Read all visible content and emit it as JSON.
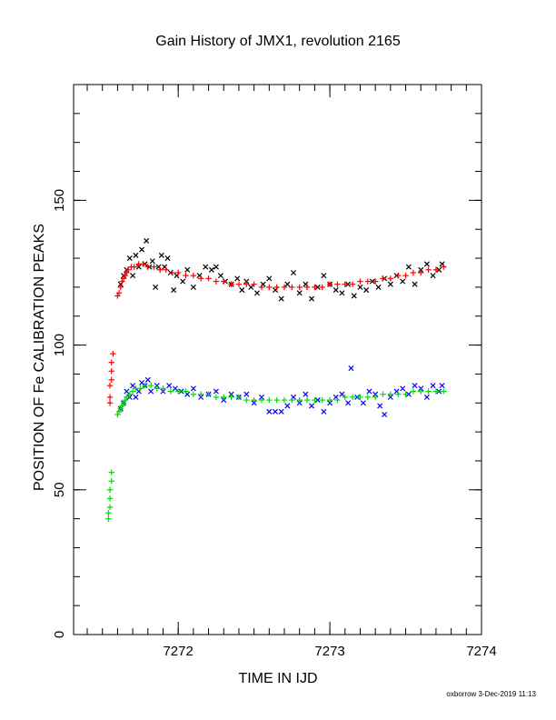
{
  "chart_data": {
    "type": "scatter",
    "title": "Gain History of JMX1, revolution 2165",
    "xlabel": "TIME IN IJD",
    "ylabel": "POSITION OF Fe CALIBRATION PEAKS",
    "xlim": [
      7271.31,
      7274.0
    ],
    "ylim": [
      0,
      190
    ],
    "x_ticks": [
      7272,
      7273,
      7274
    ],
    "y_ticks": [
      0,
      50,
      100,
      150
    ],
    "grid": false,
    "legend": "none",
    "series": [
      {
        "color": "#000000",
        "marker": "x",
        "points": [
          [
            7271.62,
            121
          ],
          [
            7271.64,
            124
          ],
          [
            7271.66,
            126
          ],
          [
            7271.68,
            130
          ],
          [
            7271.7,
            124
          ],
          [
            7271.72,
            131
          ],
          [
            7271.74,
            127
          ],
          [
            7271.76,
            133
          ],
          [
            7271.78,
            128
          ],
          [
            7271.79,
            136
          ],
          [
            7271.81,
            127
          ],
          [
            7271.83,
            129
          ],
          [
            7271.85,
            120
          ],
          [
            7271.87,
            127
          ],
          [
            7271.89,
            131
          ],
          [
            7271.91,
            127
          ],
          [
            7271.93,
            130
          ],
          [
            7271.95,
            125
          ],
          [
            7271.97,
            119
          ],
          [
            7271.99,
            124
          ],
          [
            7272.03,
            122
          ],
          [
            7272.06,
            126
          ],
          [
            7272.1,
            120
          ],
          [
            7272.14,
            124
          ],
          [
            7272.18,
            127
          ],
          [
            7272.22,
            126
          ],
          [
            7272.25,
            127
          ],
          [
            7272.28,
            124
          ],
          [
            7272.31,
            122
          ],
          [
            7272.35,
            121
          ],
          [
            7272.39,
            123
          ],
          [
            7272.42,
            119
          ],
          [
            7272.45,
            122
          ],
          [
            7272.48,
            120
          ],
          [
            7272.52,
            118
          ],
          [
            7272.56,
            121
          ],
          [
            7272.6,
            123
          ],
          [
            7272.64,
            119
          ],
          [
            7272.68,
            116
          ],
          [
            7272.72,
            121
          ],
          [
            7272.76,
            125
          ],
          [
            7272.8,
            118
          ],
          [
            7272.84,
            121
          ],
          [
            7272.88,
            116
          ],
          [
            7272.92,
            120
          ],
          [
            7272.96,
            124
          ],
          [
            7273.0,
            121
          ],
          [
            7273.04,
            119
          ],
          [
            7273.08,
            118
          ],
          [
            7273.12,
            121
          ],
          [
            7273.16,
            117
          ],
          [
            7273.2,
            120
          ],
          [
            7273.24,
            119
          ],
          [
            7273.28,
            122
          ],
          [
            7273.32,
            120
          ],
          [
            7273.36,
            123
          ],
          [
            7273.4,
            121
          ],
          [
            7273.44,
            124
          ],
          [
            7273.48,
            122
          ],
          [
            7273.52,
            127
          ],
          [
            7273.56,
            121
          ],
          [
            7273.6,
            126
          ],
          [
            7273.64,
            128
          ],
          [
            7273.68,
            124
          ],
          [
            7273.72,
            126
          ],
          [
            7273.74,
            128
          ]
        ]
      },
      {
        "color": "#ff0000",
        "marker": "+",
        "points": [
          [
            7271.55,
            80
          ],
          [
            7271.55,
            82
          ],
          [
            7271.55,
            86
          ],
          [
            7271.56,
            88
          ],
          [
            7271.56,
            91
          ],
          [
            7271.56,
            94
          ],
          [
            7271.57,
            97
          ],
          [
            7271.6,
            117
          ],
          [
            7271.61,
            118
          ],
          [
            7271.62,
            120
          ],
          [
            7271.63,
            122
          ],
          [
            7271.64,
            123
          ],
          [
            7271.65,
            124
          ],
          [
            7271.66,
            125
          ],
          [
            7271.67,
            126
          ],
          [
            7271.69,
            127
          ],
          [
            7271.71,
            127
          ],
          [
            7271.74,
            128
          ],
          [
            7271.77,
            128
          ],
          [
            7271.8,
            127
          ],
          [
            7271.84,
            127
          ],
          [
            7271.88,
            126
          ],
          [
            7271.92,
            126
          ],
          [
            7271.96,
            125
          ],
          [
            7272.0,
            125
          ],
          [
            7272.05,
            124
          ],
          [
            7272.1,
            124
          ],
          [
            7272.15,
            123
          ],
          [
            7272.2,
            123
          ],
          [
            7272.25,
            122
          ],
          [
            7272.3,
            122
          ],
          [
            7272.35,
            121
          ],
          [
            7272.4,
            121
          ],
          [
            7272.45,
            121
          ],
          [
            7272.5,
            121
          ],
          [
            7272.55,
            120
          ],
          [
            7272.6,
            120
          ],
          [
            7272.65,
            120
          ],
          [
            7272.7,
            120
          ],
          [
            7272.75,
            120
          ],
          [
            7272.8,
            120
          ],
          [
            7272.85,
            120
          ],
          [
            7272.9,
            120
          ],
          [
            7272.95,
            120
          ],
          [
            7273.0,
            121
          ],
          [
            7273.05,
            121
          ],
          [
            7273.1,
            121
          ],
          [
            7273.15,
            121
          ],
          [
            7273.2,
            122
          ],
          [
            7273.25,
            122
          ],
          [
            7273.3,
            122
          ],
          [
            7273.35,
            123
          ],
          [
            7273.4,
            123
          ],
          [
            7273.45,
            124
          ],
          [
            7273.5,
            124
          ],
          [
            7273.55,
            125
          ],
          [
            7273.6,
            125
          ],
          [
            7273.65,
            126
          ],
          [
            7273.7,
            126
          ],
          [
            7273.75,
            127
          ]
        ]
      },
      {
        "color": "#0000ff",
        "marker": "x",
        "points": [
          [
            7271.62,
            78
          ],
          [
            7271.64,
            80
          ],
          [
            7271.66,
            84
          ],
          [
            7271.68,
            82
          ],
          [
            7271.7,
            86
          ],
          [
            7271.72,
            82
          ],
          [
            7271.74,
            84
          ],
          [
            7271.76,
            87
          ],
          [
            7271.78,
            86
          ],
          [
            7271.8,
            88
          ],
          [
            7271.82,
            84
          ],
          [
            7271.86,
            86
          ],
          [
            7271.9,
            84
          ],
          [
            7271.94,
            86
          ],
          [
            7271.98,
            85
          ],
          [
            7272.02,
            84
          ],
          [
            7272.06,
            83
          ],
          [
            7272.1,
            85
          ],
          [
            7272.15,
            82
          ],
          [
            7272.2,
            83
          ],
          [
            7272.25,
            84
          ],
          [
            7272.3,
            81
          ],
          [
            7272.35,
            83
          ],
          [
            7272.4,
            82
          ],
          [
            7272.45,
            83
          ],
          [
            7272.5,
            80
          ],
          [
            7272.55,
            82
          ],
          [
            7272.6,
            77
          ],
          [
            7272.64,
            77
          ],
          [
            7272.68,
            77
          ],
          [
            7272.72,
            79
          ],
          [
            7272.76,
            82
          ],
          [
            7272.8,
            80
          ],
          [
            7272.84,
            83
          ],
          [
            7272.88,
            79
          ],
          [
            7272.92,
            81
          ],
          [
            7272.96,
            77
          ],
          [
            7273.0,
            80
          ],
          [
            7273.04,
            82
          ],
          [
            7273.08,
            83
          ],
          [
            7273.12,
            80
          ],
          [
            7273.14,
            92
          ],
          [
            7273.18,
            82
          ],
          [
            7273.22,
            80
          ],
          [
            7273.26,
            84
          ],
          [
            7273.3,
            83
          ],
          [
            7273.33,
            79
          ],
          [
            7273.36,
            76
          ],
          [
            7273.4,
            82
          ],
          [
            7273.44,
            84
          ],
          [
            7273.48,
            85
          ],
          [
            7273.52,
            83
          ],
          [
            7273.56,
            86
          ],
          [
            7273.6,
            85
          ],
          [
            7273.64,
            82
          ],
          [
            7273.68,
            86
          ],
          [
            7273.72,
            84
          ],
          [
            7273.74,
            86
          ]
        ]
      },
      {
        "color": "#00dd00",
        "marker": "+",
        "points": [
          [
            7271.54,
            40
          ],
          [
            7271.54,
            42
          ],
          [
            7271.55,
            44
          ],
          [
            7271.55,
            47
          ],
          [
            7271.55,
            50
          ],
          [
            7271.56,
            53
          ],
          [
            7271.56,
            56
          ],
          [
            7271.6,
            76
          ],
          [
            7271.61,
            77
          ],
          [
            7271.62,
            78
          ],
          [
            7271.63,
            79
          ],
          [
            7271.64,
            80
          ],
          [
            7271.65,
            81
          ],
          [
            7271.66,
            82
          ],
          [
            7271.68,
            83
          ],
          [
            7271.7,
            84
          ],
          [
            7271.72,
            85
          ],
          [
            7271.75,
            85
          ],
          [
            7271.78,
            86
          ],
          [
            7271.82,
            86
          ],
          [
            7271.86,
            85
          ],
          [
            7271.9,
            85
          ],
          [
            7271.95,
            84
          ],
          [
            7272.0,
            84
          ],
          [
            7272.05,
            84
          ],
          [
            7272.1,
            83
          ],
          [
            7272.15,
            83
          ],
          [
            7272.2,
            83
          ],
          [
            7272.25,
            82
          ],
          [
            7272.3,
            82
          ],
          [
            7272.35,
            82
          ],
          [
            7272.4,
            82
          ],
          [
            7272.45,
            81
          ],
          [
            7272.5,
            81
          ],
          [
            7272.55,
            81
          ],
          [
            7272.6,
            81
          ],
          [
            7272.65,
            81
          ],
          [
            7272.7,
            81
          ],
          [
            7272.75,
            81
          ],
          [
            7272.8,
            81
          ],
          [
            7272.85,
            81
          ],
          [
            7272.9,
            81
          ],
          [
            7272.95,
            81
          ],
          [
            7273.0,
            81
          ],
          [
            7273.05,
            81
          ],
          [
            7273.1,
            82
          ],
          [
            7273.15,
            82
          ],
          [
            7273.2,
            82
          ],
          [
            7273.25,
            82
          ],
          [
            7273.3,
            82
          ],
          [
            7273.35,
            83
          ],
          [
            7273.4,
            83
          ],
          [
            7273.45,
            83
          ],
          [
            7273.5,
            83
          ],
          [
            7273.55,
            84
          ],
          [
            7273.6,
            84
          ],
          [
            7273.65,
            84
          ],
          [
            7273.7,
            84
          ],
          [
            7273.75,
            84
          ]
        ]
      }
    ]
  },
  "footer": "oxborrow 3-Dec-2019 11:13"
}
